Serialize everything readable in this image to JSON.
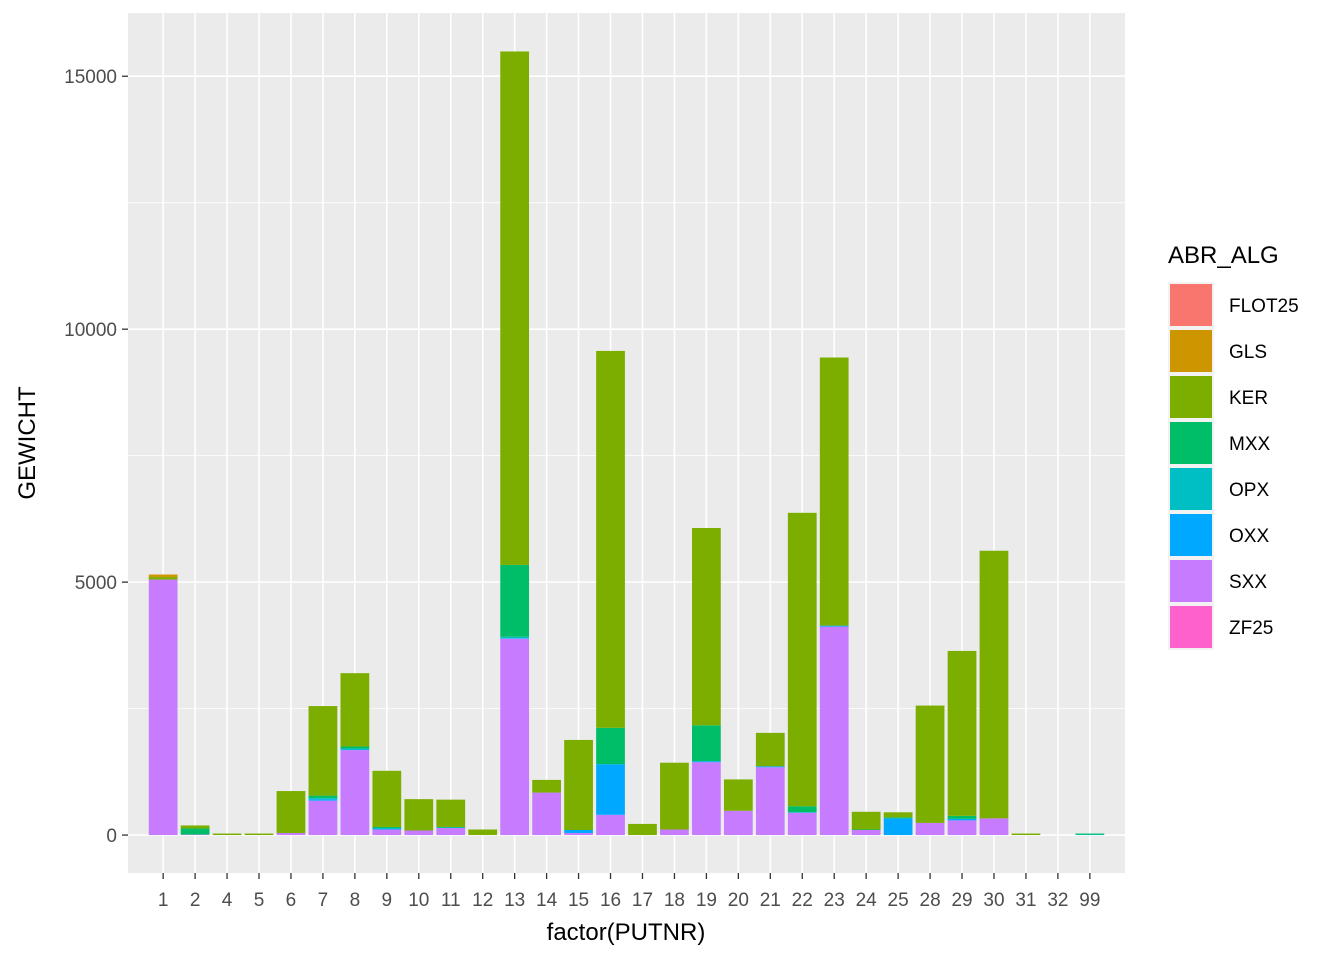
{
  "chart_data": {
    "type": "bar",
    "stacked": true,
    "xlabel": "factor(PUTNR)",
    "ylabel": "GEWICHT",
    "ylim": [
      -750,
      16250
    ],
    "yticks": [
      0,
      5000,
      10000,
      15000
    ],
    "categories": [
      "1",
      "2",
      "4",
      "5",
      "6",
      "7",
      "8",
      "9",
      "10",
      "11",
      "12",
      "13",
      "14",
      "15",
      "16",
      "17",
      "18",
      "19",
      "20",
      "21",
      "22",
      "23",
      "24",
      "25",
      "28",
      "29",
      "30",
      "31",
      "32",
      "99"
    ],
    "legend": {
      "title": "ABR_ALG",
      "position": "right"
    },
    "series": [
      {
        "name": "FLOT25",
        "color": "#F8766D",
        "values": [
          0,
          0,
          0,
          0,
          0,
          0,
          0,
          0,
          0,
          0,
          0,
          0,
          0,
          0,
          0,
          0,
          0,
          0,
          0,
          0,
          0,
          0,
          0,
          0,
          0,
          0,
          0,
          0,
          0,
          0
        ]
      },
      {
        "name": "GLS",
        "color": "#CD9600",
        "values": [
          50,
          0,
          0,
          0,
          0,
          0,
          0,
          0,
          0,
          0,
          0,
          0,
          0,
          0,
          0,
          0,
          0,
          0,
          0,
          0,
          0,
          0,
          0,
          0,
          0,
          0,
          0,
          0,
          0,
          0
        ]
      },
      {
        "name": "KER",
        "color": "#7CAE00",
        "values": [
          50,
          60,
          30,
          30,
          830,
          1770,
          1450,
          1110,
          620,
          540,
          110,
          10150,
          250,
          1780,
          7450,
          220,
          1320,
          3900,
          620,
          660,
          5800,
          5300,
          350,
          100,
          2320,
          3260,
          5290,
          30,
          0,
          0
        ]
      },
      {
        "name": "MXX",
        "color": "#00BE67",
        "values": [
          0,
          120,
          0,
          0,
          0,
          50,
          40,
          20,
          0,
          10,
          0,
          1420,
          0,
          0,
          720,
          0,
          0,
          710,
          0,
          0,
          120,
          0,
          10,
          20,
          0,
          60,
          0,
          0,
          0,
          20
        ]
      },
      {
        "name": "OPX",
        "color": "#00BFC4",
        "values": [
          0,
          0,
          0,
          0,
          0,
          20,
          20,
          20,
          0,
          10,
          0,
          30,
          0,
          0,
          0,
          0,
          0,
          0,
          0,
          0,
          0,
          0,
          0,
          0,
          0,
          0,
          0,
          0,
          0,
          10
        ]
      },
      {
        "name": "OXX",
        "color": "#00A9FF",
        "values": [
          0,
          0,
          0,
          0,
          0,
          30,
          10,
          10,
          0,
          0,
          0,
          10,
          0,
          60,
          1000,
          0,
          0,
          20,
          0,
          20,
          10,
          20,
          0,
          330,
          0,
          30,
          0,
          0,
          0,
          0
        ]
      },
      {
        "name": "SXX",
        "color": "#C77CFF",
        "values": [
          5050,
          10,
          0,
          0,
          40,
          680,
          1680,
          110,
          90,
          140,
          0,
          3880,
          840,
          40,
          400,
          0,
          110,
          1440,
          480,
          1340,
          440,
          4120,
          100,
          0,
          240,
          290,
          330,
          0,
          0,
          0
        ]
      },
      {
        "name": "ZF25",
        "color": "#FF61CC",
        "values": [
          0,
          0,
          0,
          0,
          0,
          0,
          0,
          0,
          0,
          0,
          0,
          0,
          0,
          0,
          0,
          0,
          0,
          0,
          0,
          0,
          0,
          0,
          0,
          0,
          0,
          0,
          0,
          0,
          0,
          0
        ]
      }
    ]
  }
}
